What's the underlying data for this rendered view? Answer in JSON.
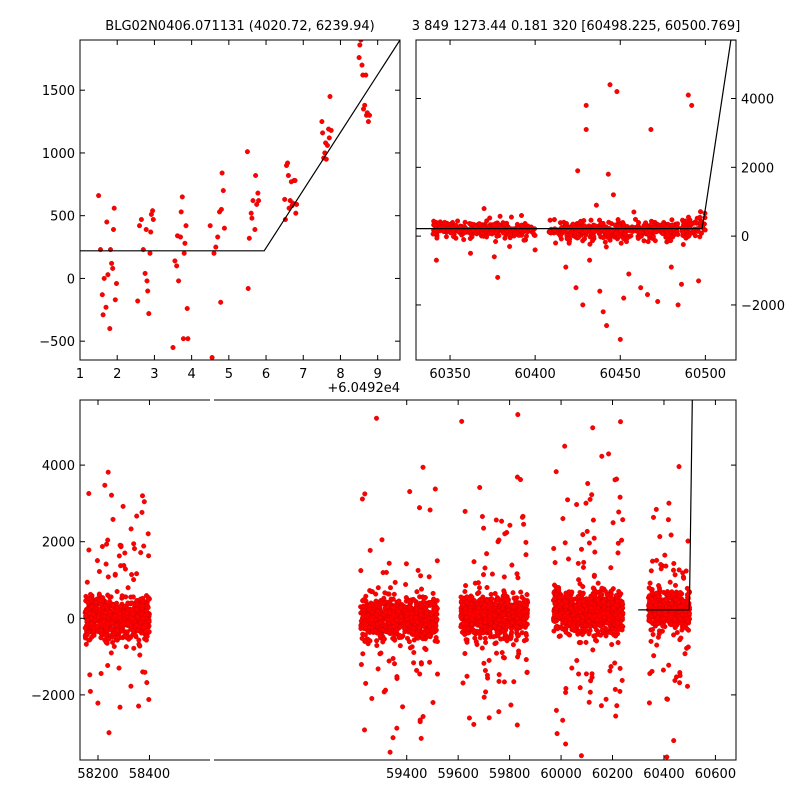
{
  "colors": {
    "points": "#ff0000",
    "fit_line": "#000000",
    "background": "#ffffff"
  },
  "chart_data": [
    {
      "type": "scatter",
      "panel": "top-left",
      "title": "BLG02N0406.071131 (4020.72, 6239.94)",
      "xlim": [
        1,
        9.6
      ],
      "ylim": [
        -650,
        1900
      ],
      "x_offset_label": "+6.0492e4",
      "x_ticks": [
        1,
        2,
        3,
        4,
        5,
        6,
        7,
        8,
        9
      ],
      "y_ticks": [
        -500,
        0,
        500,
        1000,
        1500
      ],
      "x_tick_labels": [
        "1",
        "2",
        "3",
        "4",
        "5",
        "6",
        "7",
        "8",
        "9"
      ],
      "y_tick_labels": [
        "−500",
        "0",
        "500",
        "1000",
        "1500"
      ],
      "fit_line": {
        "x": [
          1,
          5.95,
          9.6
        ],
        "y": [
          220,
          220,
          1900
        ]
      },
      "points": [
        [
          1.5,
          660
        ],
        [
          1.55,
          230
        ],
        [
          1.6,
          -130
        ],
        [
          1.62,
          -290
        ],
        [
          1.65,
          0
        ],
        [
          1.7,
          -230
        ],
        [
          1.72,
          450
        ],
        [
          1.75,
          30
        ],
        [
          1.8,
          -400
        ],
        [
          1.82,
          230
        ],
        [
          1.85,
          120
        ],
        [
          1.88,
          80
        ],
        [
          1.9,
          390
        ],
        [
          1.92,
          560
        ],
        [
          1.95,
          -170
        ],
        [
          1.98,
          -40
        ],
        [
          2.55,
          -180
        ],
        [
          2.6,
          420
        ],
        [
          2.65,
          470
        ],
        [
          2.7,
          230
        ],
        [
          2.75,
          40
        ],
        [
          2.78,
          390
        ],
        [
          2.8,
          -20
        ],
        [
          2.82,
          -100
        ],
        [
          2.85,
          -280
        ],
        [
          2.88,
          200
        ],
        [
          2.9,
          370
        ],
        [
          2.92,
          510
        ],
        [
          2.95,
          540
        ],
        [
          2.97,
          470
        ],
        [
          3.5,
          -550
        ],
        [
          3.55,
          140
        ],
        [
          3.6,
          100
        ],
        [
          3.62,
          340
        ],
        [
          3.65,
          -20
        ],
        [
          3.7,
          330
        ],
        [
          3.72,
          530
        ],
        [
          3.75,
          650
        ],
        [
          3.78,
          -480
        ],
        [
          3.8,
          200
        ],
        [
          3.82,
          280
        ],
        [
          3.85,
          420
        ],
        [
          3.88,
          -240
        ],
        [
          3.9,
          -480
        ],
        [
          4.5,
          420
        ],
        [
          4.55,
          -630
        ],
        [
          4.6,
          200
        ],
        [
          4.65,
          250
        ],
        [
          4.7,
          330
        ],
        [
          4.75,
          530
        ],
        [
          4.78,
          -190
        ],
        [
          4.8,
          550
        ],
        [
          4.82,
          840
        ],
        [
          4.85,
          700
        ],
        [
          4.88,
          400
        ],
        [
          5.5,
          1010
        ],
        [
          5.52,
          -80
        ],
        [
          5.55,
          320
        ],
        [
          5.6,
          520
        ],
        [
          5.62,
          480
        ],
        [
          5.65,
          620
        ],
        [
          5.7,
          390
        ],
        [
          5.72,
          820
        ],
        [
          5.75,
          590
        ],
        [
          5.78,
          680
        ],
        [
          5.8,
          620
        ],
        [
          6.5,
          630
        ],
        [
          6.52,
          470
        ],
        [
          6.55,
          900
        ],
        [
          6.58,
          920
        ],
        [
          6.6,
          820
        ],
        [
          6.62,
          560
        ],
        [
          6.65,
          620
        ],
        [
          6.68,
          770
        ],
        [
          6.7,
          580
        ],
        [
          6.72,
          600
        ],
        [
          6.75,
          780
        ],
        [
          6.78,
          780
        ],
        [
          6.8,
          520
        ],
        [
          6.82,
          590
        ],
        [
          7.5,
          1250
        ],
        [
          7.52,
          1160
        ],
        [
          7.55,
          960
        ],
        [
          7.58,
          1000
        ],
        [
          7.6,
          1080
        ],
        [
          7.62,
          950
        ],
        [
          7.65,
          1060
        ],
        [
          7.68,
          1190
        ],
        [
          7.7,
          1120
        ],
        [
          7.72,
          1450
        ],
        [
          7.75,
          1180
        ],
        [
          8.5,
          1760
        ],
        [
          8.52,
          1860
        ],
        [
          8.55,
          1900
        ],
        [
          8.58,
          1700
        ],
        [
          8.6,
          1620
        ],
        [
          8.62,
          1350
        ],
        [
          8.65,
          1380
        ],
        [
          8.68,
          1620
        ],
        [
          8.7,
          1300
        ],
        [
          8.72,
          1320
        ],
        [
          8.75,
          1250
        ],
        [
          8.78,
          1300
        ]
      ]
    },
    {
      "type": "scatter",
      "panel": "top-right",
      "title": "3 849 1273.44 0.181 320 [60498.225, 60500.769]",
      "xlim": [
        60330,
        60518
      ],
      "ylim": [
        -3600,
        5700
      ],
      "x_ticks": [
        60350,
        60400,
        60450,
        60500
      ],
      "y_ticks": [
        -2000,
        0,
        2000,
        4000
      ],
      "x_tick_labels": [
        "60350",
        "60400",
        "60450",
        "60500"
      ],
      "y_tick_labels": [
        "−2000",
        "0",
        "2000",
        "4000"
      ],
      "fit_line": {
        "x": [
          60330,
          60498,
          60500,
          60515,
          60518
        ],
        "y": [
          220,
          220,
          800,
          5700,
          5700
        ]
      },
      "point_groups": [
        {
          "range": [
            60340,
            60400
          ],
          "center": 180,
          "spread": 240,
          "count": 300,
          "seed": 11
        },
        {
          "range": [
            60408,
            60490
          ],
          "center": 150,
          "spread": 300,
          "count": 420,
          "seed": 12
        },
        {
          "range": [
            60490,
            60500
          ],
          "center": 300,
          "spread": 350,
          "count": 40,
          "seed": 13
        }
      ],
      "outliers": [
        [
          60342,
          -700
        ],
        [
          60352,
          180
        ],
        [
          60358,
          -100
        ],
        [
          60362,
          -500
        ],
        [
          60370,
          800
        ],
        [
          60376,
          -600
        ],
        [
          60378,
          -1200
        ],
        [
          60385,
          -300
        ],
        [
          60392,
          600
        ],
        [
          60400,
          -400
        ],
        [
          60412,
          -200
        ],
        [
          60418,
          -900
        ],
        [
          60424,
          -1500
        ],
        [
          60425,
          1900
        ],
        [
          60428,
          -2000
        ],
        [
          60430,
          3100
        ],
        [
          60430,
          3800
        ],
        [
          60432,
          -700
        ],
        [
          60436,
          900
        ],
        [
          60438,
          -1600
        ],
        [
          60440,
          -2200
        ],
        [
          60442,
          -2600
        ],
        [
          60443,
          1800
        ],
        [
          60444,
          4400
        ],
        [
          60446,
          1200
        ],
        [
          60448,
          4200
        ],
        [
          60450,
          -3000
        ],
        [
          60452,
          -1800
        ],
        [
          60455,
          -1100
        ],
        [
          60458,
          700
        ],
        [
          60462,
          -1500
        ],
        [
          60466,
          -1700
        ],
        [
          60468,
          3100
        ],
        [
          60472,
          -1900
        ],
        [
          60480,
          -900
        ],
        [
          60484,
          -2000
        ],
        [
          60486,
          -1400
        ],
        [
          60490,
          4100
        ],
        [
          60492,
          3800
        ],
        [
          60496,
          -1300
        ]
      ]
    },
    {
      "type": "scatter",
      "panel": "bottom",
      "title": "",
      "xlim": [
        58130,
        60680
      ],
      "ylim": [
        -3700,
        5700
      ],
      "x_ticks": [
        58200,
        58400,
        59400,
        59600,
        59800,
        60000,
        60200,
        60400,
        60600
      ],
      "y_ticks": [
        -2000,
        0,
        2000,
        4000
      ],
      "x_tick_labels": [
        "58200",
        "58400",
        "59400",
        "59600",
        "59800",
        "60000",
        "60200",
        "60400",
        "60600"
      ],
      "y_tick_labels": [
        "−2000",
        "0",
        "2000",
        "4000"
      ],
      "fit_line": {
        "x": [
          60300,
          60498,
          60500,
          60510
        ],
        "y": [
          220,
          220,
          800,
          5700
        ]
      },
      "point_groups": [
        {
          "range": [
            58150,
            58400
          ],
          "center": 0,
          "spread": 550,
          "count": 750,
          "seed": 21,
          "outlier_rate": 0.12,
          "outlier_spread": 1800
        },
        {
          "range": [
            59220,
            59520
          ],
          "center": 0,
          "spread": 550,
          "count": 750,
          "seed": 22,
          "outlier_rate": 0.12,
          "outlier_spread": 1800
        },
        {
          "range": [
            59610,
            59870
          ],
          "center": 50,
          "spread": 550,
          "count": 750,
          "seed": 23,
          "outlier_rate": 0.15,
          "outlier_spread": 2000
        },
        {
          "range": [
            59970,
            60240
          ],
          "center": 150,
          "spread": 550,
          "count": 750,
          "seed": 24,
          "outlier_rate": 0.15,
          "outlier_spread": 2200
        },
        {
          "range": [
            60340,
            60500
          ],
          "center": 220,
          "spread": 450,
          "count": 500,
          "seed": 25,
          "outlier_rate": 0.12,
          "outlier_spread": 1700
        }
      ]
    }
  ]
}
